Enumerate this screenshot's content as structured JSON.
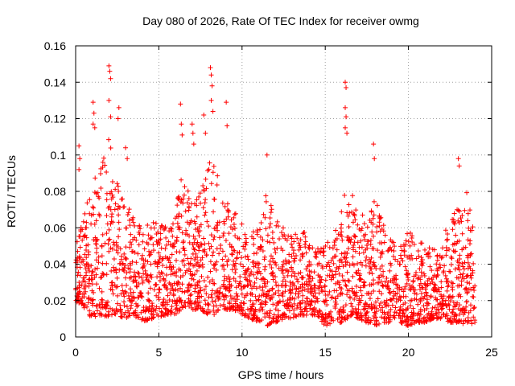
{
  "chart_data": {
    "type": "scatter",
    "title": "Day 080 of 2026, Rate Of TEC Index for receiver owmg",
    "xlabel": "GPS time / hours",
    "ylabel": "ROTI / TECUs",
    "xlim": [
      0,
      25
    ],
    "ylim": [
      0,
      0.16
    ],
    "x_ticks": [
      0,
      5,
      10,
      15,
      20,
      25
    ],
    "y_ticks": [
      0,
      0.02,
      0.04,
      0.06,
      0.08,
      0.1,
      0.12,
      0.14,
      0.16
    ],
    "x_tick_labels": [
      "0",
      "5",
      "10",
      "15",
      "20",
      "25"
    ],
    "y_tick_labels": [
      "0",
      "0.02",
      "0.04",
      "0.06",
      "0.08",
      "0.1",
      "0.12",
      "0.14",
      "0.16"
    ],
    "grid": true,
    "marker": "plus",
    "color": "#ff0000",
    "envelope": {
      "x": [
        0,
        0.5,
        1,
        1.5,
        2,
        2.2,
        2.5,
        3,
        3.5,
        4,
        4.5,
        5,
        5.5,
        6,
        6.4,
        7,
        7.5,
        8,
        8.3,
        8.6,
        9,
        9.5,
        10,
        10.5,
        11,
        11.5,
        12,
        12.5,
        13,
        13.5,
        14,
        14.5,
        15,
        15.5,
        16,
        16.3,
        16.6,
        17,
        17.5,
        18,
        18.5,
        19,
        19.5,
        20,
        20.5,
        21,
        21.5,
        22,
        22.5,
        23,
        23.5,
        24
      ],
      "low": [
        0.02,
        0.015,
        0.01,
        0.012,
        0.01,
        0.012,
        0.012,
        0.01,
        0.012,
        0.008,
        0.01,
        0.01,
        0.012,
        0.012,
        0.015,
        0.015,
        0.015,
        0.012,
        0.012,
        0.015,
        0.015,
        0.015,
        0.012,
        0.01,
        0.008,
        0.006,
        0.008,
        0.01,
        0.01,
        0.012,
        0.012,
        0.012,
        0.006,
        0.008,
        0.008,
        0.01,
        0.012,
        0.01,
        0.008,
        0.006,
        0.008,
        0.008,
        0.008,
        0.006,
        0.008,
        0.008,
        0.01,
        0.01,
        0.008,
        0.008,
        0.006,
        0.008
      ],
      "high": [
        0.05,
        0.07,
        0.085,
        0.1,
        0.11,
        0.1,
        0.09,
        0.075,
        0.065,
        0.06,
        0.065,
        0.065,
        0.065,
        0.07,
        0.09,
        0.075,
        0.08,
        0.095,
        0.1,
        0.09,
        0.075,
        0.07,
        0.065,
        0.055,
        0.07,
        0.08,
        0.065,
        0.06,
        0.055,
        0.06,
        0.055,
        0.05,
        0.05,
        0.06,
        0.07,
        0.085,
        0.08,
        0.065,
        0.07,
        0.075,
        0.065,
        0.055,
        0.05,
        0.06,
        0.055,
        0.05,
        0.05,
        0.055,
        0.065,
        0.075,
        0.08,
        0.055
      ]
    },
    "outliers": [
      {
        "x": 0.2,
        "y": 0.105
      },
      {
        "x": 0.25,
        "y": 0.098
      },
      {
        "x": 0.2,
        "y": 0.092
      },
      {
        "x": 1.05,
        "y": 0.129
      },
      {
        "x": 1.1,
        "y": 0.123
      },
      {
        "x": 1.05,
        "y": 0.117
      },
      {
        "x": 1.15,
        "y": 0.115
      },
      {
        "x": 2.0,
        "y": 0.149
      },
      {
        "x": 2.05,
        "y": 0.146
      },
      {
        "x": 2.1,
        "y": 0.142
      },
      {
        "x": 2.0,
        "y": 0.13
      },
      {
        "x": 2.1,
        "y": 0.121
      },
      {
        "x": 2.6,
        "y": 0.126
      },
      {
        "x": 2.55,
        "y": 0.12
      },
      {
        "x": 3.0,
        "y": 0.104
      },
      {
        "x": 3.1,
        "y": 0.098
      },
      {
        "x": 6.3,
        "y": 0.128
      },
      {
        "x": 6.35,
        "y": 0.117
      },
      {
        "x": 6.4,
        "y": 0.111
      },
      {
        "x": 7.0,
        "y": 0.117
      },
      {
        "x": 7.05,
        "y": 0.112
      },
      {
        "x": 7.1,
        "y": 0.106
      },
      {
        "x": 7.7,
        "y": 0.122
      },
      {
        "x": 7.8,
        "y": 0.112
      },
      {
        "x": 8.1,
        "y": 0.148
      },
      {
        "x": 8.15,
        "y": 0.144
      },
      {
        "x": 8.2,
        "y": 0.138
      },
      {
        "x": 8.15,
        "y": 0.13
      },
      {
        "x": 8.25,
        "y": 0.124
      },
      {
        "x": 9.05,
        "y": 0.129
      },
      {
        "x": 9.1,
        "y": 0.116
      },
      {
        "x": 11.5,
        "y": 0.1
      },
      {
        "x": 16.2,
        "y": 0.14
      },
      {
        "x": 16.25,
        "y": 0.137
      },
      {
        "x": 16.2,
        "y": 0.126
      },
      {
        "x": 16.25,
        "y": 0.121
      },
      {
        "x": 16.2,
        "y": 0.115
      },
      {
        "x": 16.3,
        "y": 0.112
      },
      {
        "x": 17.9,
        "y": 0.106
      },
      {
        "x": 17.95,
        "y": 0.098
      },
      {
        "x": 23.0,
        "y": 0.098
      },
      {
        "x": 23.05,
        "y": 0.094
      }
    ]
  }
}
